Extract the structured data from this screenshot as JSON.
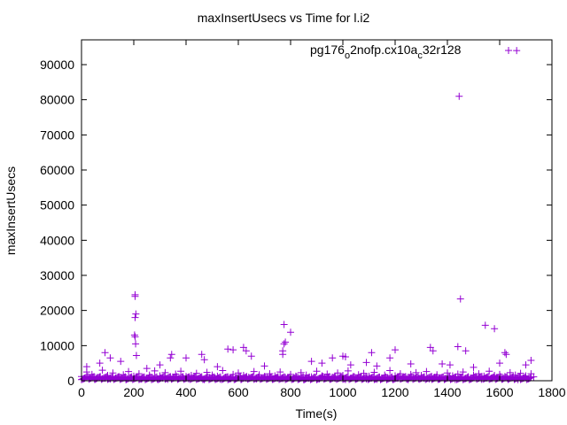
{
  "chart_data": {
    "type": "scatter",
    "title": "maxInsertUsecs vs Time for l.i2",
    "xlabel": "Time(s)",
    "ylabel": "maxInsertUsecs",
    "xlim": [
      0,
      1800
    ],
    "ylim": [
      0,
      95000
    ],
    "xticks": [
      0,
      200,
      400,
      600,
      800,
      1000,
      1200,
      1400,
      1600,
      1800
    ],
    "yticks": [
      0,
      10000,
      20000,
      30000,
      40000,
      50000,
      60000,
      70000,
      80000,
      90000
    ],
    "grid": false,
    "legend": {
      "position": "top-right",
      "label_parts": [
        "pg176",
        "o",
        "2nofp.cx10a",
        "c",
        "32r128"
      ]
    },
    "series": [
      {
        "name": "pg176_o2nofp.cx10a_c32r128",
        "color": "#9400d3",
        "marker": "+",
        "baseline": {
          "x_start": 0,
          "x_step": 20,
          "values": [
            1200,
            2500,
            1800,
            900,
            3000,
            1500,
            2200,
            1100,
            1700,
            2600,
            1300,
            2000,
            900,
            1600,
            2800,
            1400,
            2300,
            1000,
            1900,
            2700,
            1200,
            1500,
            2100,
            800,
            2400,
            1600,
            1300,
            2900,
            1100,
            1800,
            2200,
            1500,
            1000,
            2600,
            1700,
            1200,
            2000,
            1400,
            2500,
            900,
            1800,
            1300,
            2300,
            1600,
            1100,
            2700,
            1400,
            1900,
            1000,
            2200,
            1500,
            2800,
            1200,
            1700,
            2100,
            1300,
            2400,
            1000,
            1600,
            2900,
            1400,
            2000,
            1100,
            1800,
            2300,
            1500,
            2600,
            1200,
            1700,
            1000,
            2200,
            1400,
            1900,
            2500,
            1100,
            1600,
            2000,
            1300,
            2700,
            1500,
            1800,
            1200,
            2300,
            1600,
            2100,
            1400,
            2000
          ],
          "offset_values": [
            600,
            900,
            400,
            1100,
            700,
            500,
            800,
            1000,
            300,
            650,
            900,
            450,
            700,
            1000,
            550,
            800,
            400,
            950,
            600,
            750,
            500,
            850,
            650,
            300,
            900,
            700,
            450,
            1000,
            550,
            800,
            350,
            700,
            900,
            500,
            650,
            1000,
            400,
            750,
            600,
            850,
            500,
            900,
            300,
            700,
            1000,
            550,
            800,
            450,
            650,
            900,
            350,
            750,
            600,
            1000,
            500,
            800,
            400,
            700,
            950,
            550,
            650,
            850,
            300,
            900,
            600,
            750,
            500,
            1000,
            450,
            700,
            800,
            350,
            900,
            650,
            550,
            1000,
            400,
            750,
            600,
            850,
            500,
            700,
            950,
            300,
            800,
            600,
            1100
          ]
        },
        "points": [
          [
            1665,
            94000
          ],
          [
            1445,
            81000
          ],
          [
            1450,
            23300
          ],
          [
            205,
            24500
          ],
          [
            205,
            24000
          ],
          [
            208,
            19000
          ],
          [
            205,
            18000
          ],
          [
            203,
            13000
          ],
          [
            205,
            12500
          ],
          [
            207,
            10500
          ],
          [
            210,
            7200
          ],
          [
            775,
            16000
          ],
          [
            800,
            13800
          ],
          [
            775,
            10500
          ],
          [
            780,
            11000
          ],
          [
            770,
            8500
          ],
          [
            770,
            7500
          ],
          [
            1545,
            15800
          ],
          [
            1580,
            14800
          ],
          [
            1440,
            9700
          ],
          [
            1335,
            9500
          ],
          [
            1345,
            8500
          ],
          [
            1470,
            8500
          ],
          [
            1200,
            8800
          ],
          [
            1180,
            6500
          ],
          [
            1110,
            8000
          ],
          [
            1620,
            8000
          ],
          [
            1625,
            7500
          ],
          [
            580,
            8800
          ],
          [
            620,
            9500
          ],
          [
            630,
            8500
          ],
          [
            650,
            7000
          ],
          [
            560,
            9000
          ],
          [
            340,
            6500
          ],
          [
            345,
            7500
          ],
          [
            400,
            6500
          ],
          [
            460,
            7500
          ],
          [
            470,
            6000
          ],
          [
            110,
            6500
          ],
          [
            70,
            5000
          ],
          [
            90,
            8000
          ],
          [
            960,
            6500
          ],
          [
            1000,
            7000
          ],
          [
            1010,
            6800
          ],
          [
            880,
            5500
          ],
          [
            920,
            5000
          ],
          [
            1090,
            5200
          ],
          [
            1030,
            4500
          ],
          [
            1260,
            4800
          ],
          [
            1600,
            5000
          ],
          [
            1700,
            4500
          ],
          [
            1720,
            5800
          ],
          [
            150,
            5500
          ],
          [
            300,
            4500
          ],
          [
            520,
            4000
          ],
          [
            700,
            4200
          ],
          [
            1130,
            4200
          ],
          [
            1380,
            4800
          ],
          [
            1410,
            4500
          ],
          [
            1500,
            3800
          ],
          [
            20,
            4000
          ],
          [
            250,
            3500
          ]
        ]
      }
    ]
  }
}
